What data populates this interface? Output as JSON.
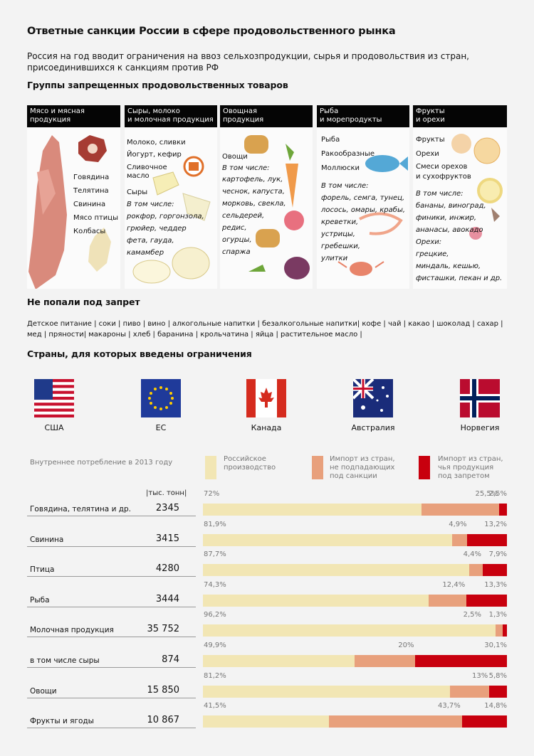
{
  "title": "Ответные санкции России в сфере продовольственного рынка",
  "subtitle": "Россия на год вводит ограничения на ввоз сельхозпродукции, сырья и продовольствия из стран, присоединившихся к санкциям против РФ",
  "groups_heading": "Группы запрещенных продовольственных товаров",
  "groups": [
    {
      "head": [
        "Мясо и мясная",
        "продукция"
      ],
      "items": [
        "Говядина",
        "Телятина",
        "Свинина",
        "Мясо птицы",
        "Колбасы"
      ]
    },
    {
      "head": [
        "Сыры, молоко",
        "и молочная продукция"
      ],
      "items": [
        "Молоко, сливки",
        "Йогурт, кефир",
        "Сливочное",
        "масло"
      ],
      "sub_title": "Сыры",
      "sub_label": "В том числе:",
      "sub_items": [
        "рокфор, горгонзола,",
        "грюйер, чеддер",
        "фета, гауда,",
        "камамбер"
      ]
    },
    {
      "head": [
        "Овощная",
        "продукция"
      ],
      "items": [
        "Овощи"
      ],
      "sub_label": "В том числе:",
      "sub_items": [
        "картофель, лук,",
        "чеснок, капуста,",
        "морковь, свекла,",
        "сельдерей,",
        "редис,",
        "огурцы,",
        "спаржа"
      ]
    },
    {
      "head": [
        "Рыба",
        "и морепродукты"
      ],
      "items": [
        "Рыба",
        "Ракообразные",
        "Моллюски"
      ],
      "sub_label": "В том числе:",
      "sub_items": [
        "форель, семга, тунец,",
        "лосось, омары, крабы,",
        "креветки,",
        "устрицы,",
        "гребешки,",
        "улитки"
      ]
    },
    {
      "head": [
        "Фрукты",
        "и орехи"
      ],
      "items": [
        "Фрукты",
        "Орехи",
        "Смеси орехов",
        "и сухофруктов"
      ],
      "sub_label": "В том числе:",
      "sub_items": [
        "бананы, виноград,",
        "финики, инжир,",
        "ананасы, авокадо",
        "Орехи:",
        "грецкие,",
        "миндаль, кешью,",
        "фисташки, пекан и др."
      ]
    }
  ],
  "not_banned_heading": "Не попали под запрет",
  "not_banned_lines": [
    "Детское питание | соки | пиво | вино | алкогольные напитки | безалкогольные напитки| кофе | чай | какао | шоколад | сахар |",
    "мед | пряности| макароны | хлеб | баранина | крольчатина | яйца | растительное масло |"
  ],
  "countries_heading": "Страны, для которых введены ограничения",
  "countries": [
    "США",
    "ЕС",
    "Канада",
    "Австралия",
    "Норвегия"
  ],
  "consumption_note": "Внутреннее потребление в 2013 году",
  "unit": "|тыс. тонн|",
  "legend": [
    {
      "label": [
        "Российское",
        "производство"
      ],
      "color": "#f2e6b4"
    },
    {
      "label": [
        "Импорт из стран,",
        "не подпадающих",
        "под санкции"
      ],
      "color": "#e8a07c"
    },
    {
      "label": [
        "Импорт из стран,",
        "чья продукция",
        "под запретом"
      ],
      "color": "#c8000e"
    }
  ],
  "colors": {
    "domestic": "#f2e6b4",
    "import_other": "#e8a07c",
    "import_banned": "#c8000e"
  },
  "chart_data": {
    "type": "bar",
    "stacked": true,
    "orientation": "horizontal",
    "categories": [
      "Говядина, телятина и др.",
      "Свинина",
      "Птица",
      "Рыба",
      "Молочная продукция",
      "в том числе сыры",
      "Овощи",
      "Фрукты и ягоды"
    ],
    "volumes": [
      "2345",
      "3415",
      "4280",
      "3444",
      "35 752",
      "874",
      "15 850",
      "10 867"
    ],
    "series": [
      {
        "name": "Российское производство",
        "values": [
          72,
          81.9,
          87.7,
          74.3,
          96.2,
          49.9,
          81.2,
          41.5
        ],
        "labels": [
          "72%",
          "81,9%",
          "87,7%",
          "74,3%",
          "96,2%",
          "49,9%",
          "81,2%",
          "41,5%"
        ]
      },
      {
        "name": "Импорт из стран, не подпадающих под санкции",
        "values": [
          25.5,
          4.9,
          4.4,
          12.4,
          2.5,
          20,
          13,
          43.7
        ],
        "labels": [
          "25,5%",
          "4,9%",
          "4,4%",
          "12,4%",
          "2,5%",
          "20%",
          "13%",
          "43,7%"
        ]
      },
      {
        "name": "Импорт из стран, чья продукция под запретом",
        "values": [
          2.5,
          13.2,
          7.9,
          13.3,
          1.3,
          30.1,
          5.8,
          14.8
        ],
        "labels": [
          "2,5%",
          "13,2%",
          "7,9%",
          "13,3%",
          "1,3%",
          "30,1%",
          "5,8%",
          "14,8%"
        ]
      }
    ]
  }
}
